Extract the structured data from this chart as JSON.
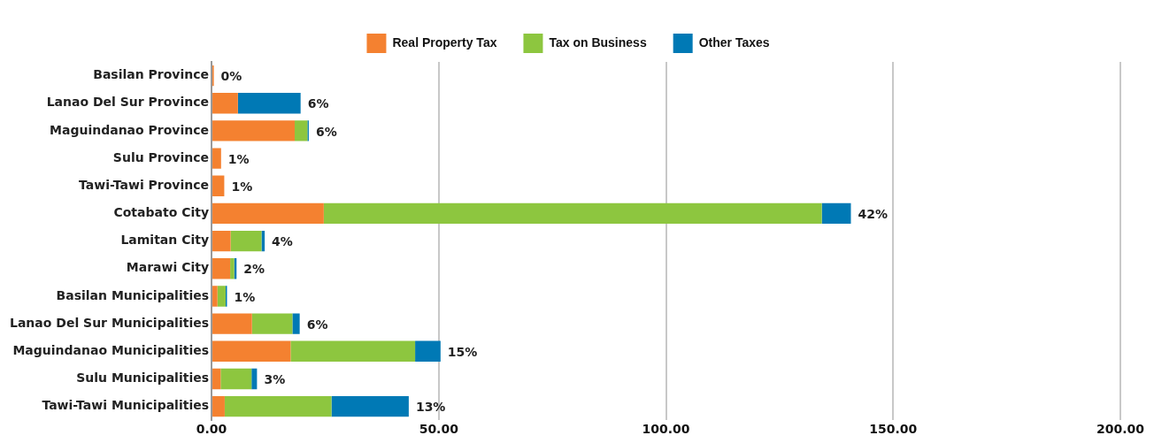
{
  "chart_data": {
    "type": "bar",
    "orientation": "horizontal",
    "stacked": true,
    "categories": [
      "Basilan Province",
      "Lanao Del Sur Province",
      "Maguindanao Province",
      "Sulu Province",
      "Tawi-Tawi Province",
      "Cotabato City",
      "Lamitan City",
      "Marawi City",
      "Basilan Municipalities",
      "Lanao Del Sur Municipalities",
      "Maguindanao Municipalities",
      "Sulu Municipalities",
      "Tawi-Tawi Municipalities"
    ],
    "series": [
      {
        "name": "Real Property Tax",
        "color": "#f48130",
        "values": [
          0.5,
          5.8,
          18.3,
          2.1,
          2.8,
          24.7,
          4.2,
          4.1,
          1.3,
          8.9,
          17.4,
          2.0,
          2.9
        ]
      },
      {
        "name": "Tax on Business",
        "color": "#8dc63f",
        "values": [
          null,
          null,
          2.8,
          null,
          null,
          109.6,
          6.8,
          0.9,
          1.8,
          8.9,
          27.4,
          6.8,
          23.5
        ]
      },
      {
        "name": "Other Taxes",
        "color": "#0079b5",
        "values": [
          null,
          13.8,
          0.3,
          null,
          null,
          6.4,
          0.7,
          0.5,
          0.3,
          1.6,
          5.6,
          1.2,
          17.0
        ]
      }
    ],
    "annotations": [
      {
        "text": "0%",
        "x": 0.5,
        "y": "Basilan Province"
      },
      {
        "text": "6%",
        "x": 19.6,
        "y": "Lanao Del Sur Province"
      },
      {
        "text": "6%",
        "x": 21.4,
        "y": "Maguindanao Province"
      },
      {
        "text": "1%",
        "x": 2.1,
        "y": "Sulu Province"
      },
      {
        "text": "1%",
        "x": 2.8,
        "y": "Tawi-Tawi Province"
      },
      {
        "text": "42%",
        "x": 140.7,
        "y": "Cotabato City"
      },
      {
        "text": "4%",
        "x": 11.7,
        "y": "Lamitan City"
      },
      {
        "text": "2%",
        "x": 5.5,
        "y": "Marawi City"
      },
      {
        "text": "1%",
        "x": 3.4,
        "y": "Basilan Municipalities"
      },
      {
        "text": "6%",
        "x": 19.4,
        "y": "Lanao Del Sur Municipalities"
      },
      {
        "text": "15%",
        "x": 50.4,
        "y": "Maguindanao Municipalities"
      },
      {
        "text": "3%",
        "x": 10.0,
        "y": "Sulu Municipalities"
      },
      {
        "text": "13%",
        "x": 43.4,
        "y": "Tawi-Tawi Municipalities"
      }
    ],
    "xlim": [
      0,
      200
    ],
    "xticks": [
      {
        "value": 0,
        "label": "0.00"
      },
      {
        "value": 50,
        "label": "50.00"
      },
      {
        "value": 100,
        "label": "100.00"
      },
      {
        "value": 150,
        "label": "150.00"
      },
      {
        "value": 200,
        "label": "200.00"
      }
    ],
    "grid": "x",
    "legend": "top"
  }
}
